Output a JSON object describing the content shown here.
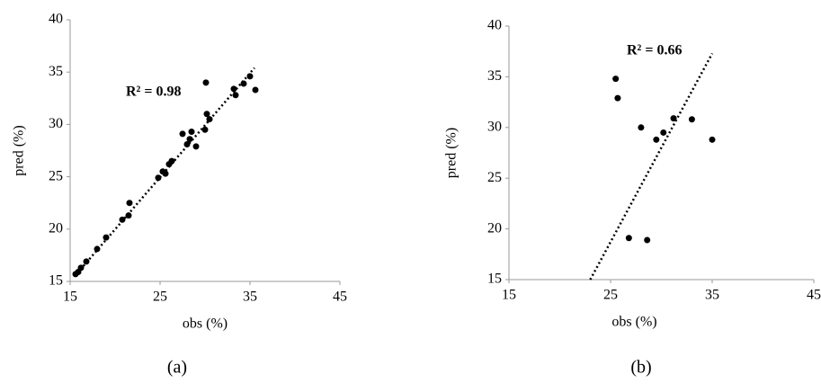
{
  "chart_data": [
    {
      "type": "scatter",
      "caption": "(a)",
      "annotation": "R² = 0.98",
      "xlabel": "obs (%)",
      "ylabel": "pred (%)",
      "xlim": [
        15,
        45
      ],
      "xticks": [
        15,
        25,
        35,
        45
      ],
      "ylim": [
        15,
        40
      ],
      "yticks": [
        15,
        20,
        25,
        30,
        35,
        40
      ],
      "color": "#000000",
      "x": [
        15.6,
        15.9,
        16.2,
        16.8,
        18,
        19,
        20.8,
        21.5,
        21.6,
        24.8,
        25.3,
        25.6,
        26,
        26.3,
        27.5,
        28,
        28.3,
        28.5,
        29,
        30,
        30.1,
        30.2,
        30.5,
        33.2,
        33.4,
        34.3,
        35,
        35.6
      ],
      "values": [
        15.7,
        15.9,
        16.3,
        16.9,
        18.1,
        19.2,
        20.9,
        21.3,
        22.5,
        24.9,
        25.5,
        25.3,
        26.2,
        26.5,
        29.1,
        28.1,
        28.6,
        29.3,
        27.9,
        29.5,
        34,
        31,
        30.5,
        33.4,
        32.8,
        33.9,
        34.6,
        33.3
      ],
      "trendline": {
        "x": [
          15.5,
          35.5
        ],
        "y": [
          15.5,
          35.4
        ]
      }
    },
    {
      "type": "scatter",
      "caption": "(b)",
      "annotation": "R² = 0.66",
      "xlabel": "obs (%)",
      "ylabel": "pred (%)",
      "xlim": [
        15,
        45
      ],
      "xticks": [
        15,
        25,
        35,
        45
      ],
      "ylim": [
        15,
        40
      ],
      "yticks": [
        15,
        20,
        25,
        30,
        35,
        40
      ],
      "color": "#000000",
      "x": [
        25.5,
        25.7,
        28,
        29.5,
        30.2,
        31.2,
        33,
        35,
        26.8,
        28.6
      ],
      "values": [
        34.8,
        32.9,
        30,
        28.8,
        29.5,
        30.9,
        30.8,
        28.8,
        19.1,
        18.9
      ],
      "trendline": {
        "x": [
          23,
          35
        ],
        "y": [
          15,
          37.3
        ]
      }
    }
  ]
}
